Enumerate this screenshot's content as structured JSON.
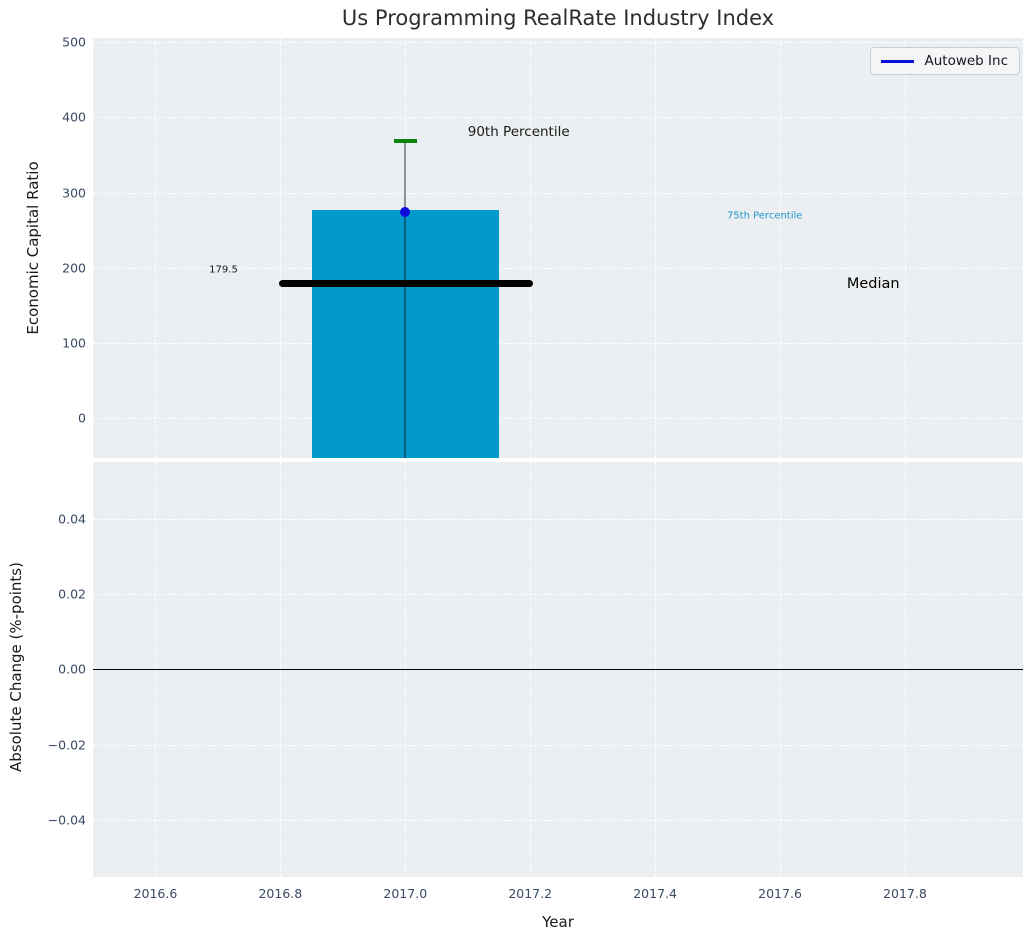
{
  "title": "Us Programming RealRate Industry Index",
  "legend": {
    "label": "Autoweb Inc"
  },
  "colors": {
    "bar": "#0299cd",
    "company_blue": "#0d0dd9",
    "green_90th": "#0a850a",
    "median_black": "#000000",
    "cyan_text": "#1f97c9",
    "axes_bg": "#eceff1",
    "grid": "#ffffff",
    "tick_label": "#394a63",
    "title_color": "#2e2e2e",
    "error_line": "rgba(25,25,25,0.45)",
    "zero_line": "#000000"
  },
  "chart_data": [
    {
      "type": "bar",
      "title": "Us Programming RealRate Industry Index",
      "xlabel": "Year",
      "ylabel": "Economic Capital Ratio",
      "x": [
        2017.0
      ],
      "bar_width": 0.3,
      "series": [
        {
          "name": "75th Percentile (bar top)",
          "values": [
            277.5
          ]
        },
        {
          "name": "Median",
          "values": [
            179.5
          ]
        },
        {
          "name": "90th Percentile",
          "values": [
            368
          ]
        },
        {
          "name": "Autoweb Inc (dot)",
          "values": [
            274.5
          ]
        }
      ],
      "median_line": {
        "y": 179.5,
        "x0": 2016.797,
        "x1": 2017.205
      },
      "percentile90_cap": {
        "y": 368,
        "x0": 2016.9816,
        "x1": 2017.0184
      },
      "error_line": {
        "x": 2017.0,
        "y_top": 368
      },
      "company_dot": {
        "x": 2017.0,
        "y": 274.5
      },
      "xlim": [
        2016.5,
        2017.989
      ],
      "ylim": [
        -52.5,
        505.5
      ],
      "grid": true,
      "legend_position": "upper right",
      "yticks": [
        {
          "v": 0,
          "label": "0"
        },
        {
          "v": 100,
          "label": "100"
        },
        {
          "v": 200,
          "label": "200"
        },
        {
          "v": 300,
          "label": "300"
        },
        {
          "v": 400,
          "label": "400"
        },
        {
          "v": 500,
          "label": "500"
        }
      ],
      "annotations": [
        {
          "text": "90th Percentile",
          "x": 2017.1,
          "y": 381,
          "size": 13.5,
          "color": "#1a1a1a"
        },
        {
          "text": "75th Percentile",
          "x": 2017.515,
          "y": 269,
          "size": 10,
          "color": "#1f97c9"
        },
        {
          "text": "Median",
          "x": 2017.707,
          "y": 179,
          "size": 14.5,
          "color": "#000000"
        },
        {
          "text": "179.5",
          "x": 2016.686,
          "y": 197,
          "size": 10,
          "color": "#1a1a1a"
        }
      ]
    },
    {
      "type": "line",
      "ylabel": "Absolute Change (%-points)",
      "ylim": [
        -0.0552,
        0.0551
      ],
      "zero_line_y": 0.0,
      "grid": true,
      "series": [],
      "yticks": [
        {
          "v": 0.04,
          "label": "0.04"
        },
        {
          "v": 0.02,
          "label": "0.02"
        },
        {
          "v": 0.0,
          "label": "0.00"
        },
        {
          "v": -0.02,
          "label": "−0.02"
        },
        {
          "v": -0.04,
          "label": "−0.04"
        }
      ]
    }
  ],
  "x_axis": {
    "label": "Year",
    "ticks": [
      {
        "v": 2016.6,
        "label": "2016.6"
      },
      {
        "v": 2016.8,
        "label": "2016.8"
      },
      {
        "v": 2017.0,
        "label": "2017.0"
      },
      {
        "v": 2017.2,
        "label": "2017.2"
      },
      {
        "v": 2017.4,
        "label": "2017.4"
      },
      {
        "v": 2017.6,
        "label": "2017.6"
      },
      {
        "v": 2017.8,
        "label": "2017.8"
      }
    ]
  }
}
